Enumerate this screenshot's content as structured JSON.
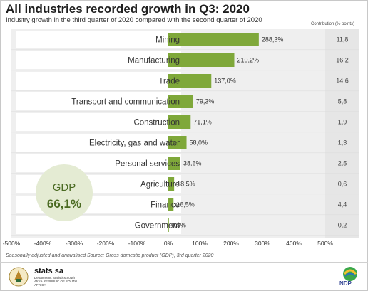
{
  "chart_data": {
    "type": "bar",
    "orientation": "horizontal",
    "title": "All industries recorded growth in Q3: 2020",
    "subtitle": "Industry growth in the third quarter of 2020 compared with the second quarter of 2020",
    "categories": [
      "Mining",
      "Manufacturing",
      "Trade",
      "Transport and communication",
      "Construction",
      "Electricity, gas and water",
      "Personal services",
      "Agriculture",
      "Finance",
      "Government"
    ],
    "values": [
      288.3,
      210.2,
      137.0,
      79.3,
      71.1,
      58.0,
      38.6,
      18.5,
      16.5,
      0.9
    ],
    "value_labels": [
      "288,3%",
      "210,2%",
      "137,0%",
      "79,3%",
      "71,1%",
      "58,0%",
      "38,6%",
      "18,5%",
      "16,5%",
      "0,9%"
    ],
    "contribution_header": "Contribution (% points)",
    "contributions": [
      "11,8",
      "16,2",
      "14,6",
      "5,8",
      "1,9",
      "1,3",
      "2,5",
      "0,6",
      "4,4",
      "0,2"
    ],
    "xlim": [
      -500,
      500
    ],
    "x_ticks": [
      -500,
      -400,
      -300,
      -200,
      -100,
      0,
      100,
      200,
      300,
      400,
      500
    ],
    "x_tick_labels": [
      "-500%",
      "-400%",
      "-300%",
      "-200%",
      "-100%",
      "0%",
      "100%",
      "200%",
      "300%",
      "400%",
      "500%"
    ],
    "gdp_label": "GDP",
    "gdp_value": "66,1%",
    "bar_color": "#7fa83a",
    "footnote_left": "Seasonally adjusted and annualised",
    "footnote_source": "Source: Gross domestic product (GDP), 3rd quarter 2020"
  },
  "branding": {
    "logo_text": "stats sa",
    "logo_sub": "Department: Statistics South Africa REPUBLIC OF SOUTH AFRICA",
    "ndp_text": "NDP"
  }
}
